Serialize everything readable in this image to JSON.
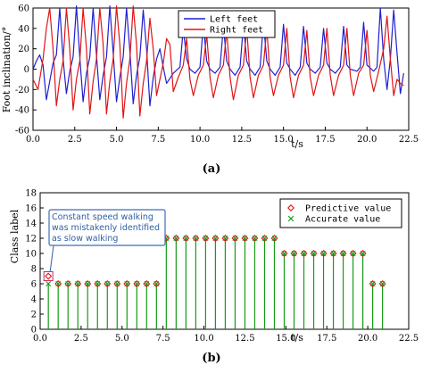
{
  "chart_data": [
    {
      "type": "line",
      "title": "",
      "xlabel": "t/s",
      "ylabel": "Foot inclination/°",
      "xlim": [
        0,
        22.5
      ],
      "ylim": [
        -60,
        60
      ],
      "x_ticks": [
        "0.0",
        "2.5",
        "5.0",
        "7.5",
        "10.0",
        "12.5",
        "15.0",
        "17.5",
        "20.0",
        "22.5"
      ],
      "y_ticks": [
        "-60",
        "-40",
        "-20",
        "0",
        "20",
        "40",
        "60"
      ],
      "grid": false,
      "legend": {
        "placement": "top-right"
      },
      "caption": "(a)",
      "series": [
        {
          "name": "Left feet",
          "color": "#1f1fd1",
          "points": [
            [
              0.0,
              0
            ],
            [
              0.2,
              8
            ],
            [
              0.4,
              14
            ],
            [
              0.6,
              4
            ],
            [
              0.8,
              -30
            ],
            [
              1.0,
              -12
            ],
            [
              1.2,
              6
            ],
            [
              1.4,
              14
            ],
            [
              1.6,
              60
            ],
            [
              1.8,
              10
            ],
            [
              2.0,
              -24
            ],
            [
              2.2,
              -2
            ],
            [
              2.4,
              12
            ],
            [
              2.6,
              62
            ],
            [
              2.8,
              12
            ],
            [
              3.0,
              -32
            ],
            [
              3.2,
              -4
            ],
            [
              3.4,
              12
            ],
            [
              3.6,
              60
            ],
            [
              3.8,
              14
            ],
            [
              4.0,
              -30
            ],
            [
              4.2,
              -6
            ],
            [
              4.4,
              12
            ],
            [
              4.6,
              62
            ],
            [
              4.8,
              16
            ],
            [
              5.0,
              -32
            ],
            [
              5.2,
              -8
            ],
            [
              5.4,
              12
            ],
            [
              5.6,
              60
            ],
            [
              5.8,
              18
            ],
            [
              6.0,
              -34
            ],
            [
              6.2,
              -6
            ],
            [
              6.4,
              12
            ],
            [
              6.6,
              58
            ],
            [
              6.8,
              20
            ],
            [
              7.0,
              -36
            ],
            [
              7.2,
              -8
            ],
            [
              7.4,
              10
            ],
            [
              7.6,
              20
            ],
            [
              7.8,
              2
            ],
            [
              8.0,
              -14
            ],
            [
              8.4,
              -4
            ],
            [
              8.8,
              2
            ],
            [
              9.0,
              40
            ],
            [
              9.2,
              10
            ],
            [
              9.4,
              0
            ],
            [
              9.7,
              -4
            ],
            [
              10.0,
              2
            ],
            [
              10.2,
              44
            ],
            [
              10.4,
              8
            ],
            [
              10.6,
              0
            ],
            [
              10.9,
              -4
            ],
            [
              11.2,
              2
            ],
            [
              11.4,
              42
            ],
            [
              11.6,
              8
            ],
            [
              11.8,
              0
            ],
            [
              12.1,
              -6
            ],
            [
              12.4,
              2
            ],
            [
              12.6,
              44
            ],
            [
              12.8,
              8
            ],
            [
              13.0,
              0
            ],
            [
              13.3,
              -6
            ],
            [
              13.6,
              2
            ],
            [
              13.8,
              46
            ],
            [
              14.0,
              8
            ],
            [
              14.2,
              0
            ],
            [
              14.5,
              -6
            ],
            [
              14.8,
              2
            ],
            [
              15.0,
              44
            ],
            [
              15.2,
              6
            ],
            [
              15.4,
              0
            ],
            [
              15.7,
              -6
            ],
            [
              16.0,
              2
            ],
            [
              16.2,
              42
            ],
            [
              16.4,
              6
            ],
            [
              16.6,
              0
            ],
            [
              16.9,
              -4
            ],
            [
              17.2,
              2
            ],
            [
              17.4,
              40
            ],
            [
              17.6,
              6
            ],
            [
              17.8,
              0
            ],
            [
              18.1,
              -4
            ],
            [
              18.4,
              2
            ],
            [
              18.6,
              42
            ],
            [
              18.8,
              4
            ],
            [
              19.0,
              0
            ],
            [
              19.4,
              -2
            ],
            [
              19.6,
              2
            ],
            [
              19.8,
              46
            ],
            [
              20.0,
              4
            ],
            [
              20.4,
              -2
            ],
            [
              20.6,
              2
            ],
            [
              20.8,
              60
            ],
            [
              21.0,
              10
            ],
            [
              21.2,
              -20
            ],
            [
              21.4,
              10
            ],
            [
              21.6,
              58
            ],
            [
              21.8,
              16
            ],
            [
              22.0,
              -24
            ],
            [
              22.2,
              -4
            ]
          ]
        },
        {
          "name": "Right feet",
          "color": "#e01515",
          "points": [
            [
              0.0,
              -10
            ],
            [
              0.3,
              -20
            ],
            [
              0.6,
              10
            ],
            [
              0.8,
              40
            ],
            [
              1.0,
              60
            ],
            [
              1.2,
              20
            ],
            [
              1.4,
              -36
            ],
            [
              1.6,
              -10
            ],
            [
              1.8,
              8
            ],
            [
              2.0,
              60
            ],
            [
              2.2,
              20
            ],
            [
              2.4,
              -40
            ],
            [
              2.6,
              -10
            ],
            [
              2.8,
              8
            ],
            [
              3.0,
              60
            ],
            [
              3.2,
              20
            ],
            [
              3.4,
              -44
            ],
            [
              3.6,
              -12
            ],
            [
              3.8,
              10
            ],
            [
              4.0,
              60
            ],
            [
              4.2,
              24
            ],
            [
              4.4,
              -44
            ],
            [
              4.6,
              -12
            ],
            [
              4.8,
              10
            ],
            [
              5.0,
              62
            ],
            [
              5.2,
              24
            ],
            [
              5.4,
              -48
            ],
            [
              5.6,
              -14
            ],
            [
              5.8,
              10
            ],
            [
              6.0,
              62
            ],
            [
              6.2,
              24
            ],
            [
              6.4,
              -46
            ],
            [
              6.6,
              -14
            ],
            [
              6.8,
              8
            ],
            [
              7.0,
              50
            ],
            [
              7.2,
              20
            ],
            [
              7.4,
              -26
            ],
            [
              7.6,
              -10
            ],
            [
              7.8,
              6
            ],
            [
              8.0,
              30
            ],
            [
              8.2,
              24
            ],
            [
              8.4,
              -22
            ],
            [
              8.7,
              -8
            ],
            [
              9.0,
              4
            ],
            [
              9.2,
              30
            ],
            [
              9.4,
              -10
            ],
            [
              9.6,
              -26
            ],
            [
              9.9,
              -6
            ],
            [
              10.2,
              4
            ],
            [
              10.4,
              34
            ],
            [
              10.6,
              -8
            ],
            [
              10.8,
              -28
            ],
            [
              11.1,
              -6
            ],
            [
              11.4,
              4
            ],
            [
              11.6,
              38
            ],
            [
              11.8,
              -8
            ],
            [
              12.0,
              -30
            ],
            [
              12.3,
              -6
            ],
            [
              12.6,
              4
            ],
            [
              12.8,
              40
            ],
            [
              13.0,
              -8
            ],
            [
              13.2,
              -28
            ],
            [
              13.5,
              -6
            ],
            [
              13.8,
              4
            ],
            [
              14.0,
              40
            ],
            [
              14.2,
              -8
            ],
            [
              14.4,
              -26
            ],
            [
              14.7,
              -6
            ],
            [
              15.0,
              4
            ],
            [
              15.2,
              40
            ],
            [
              15.4,
              -8
            ],
            [
              15.6,
              -28
            ],
            [
              15.9,
              -6
            ],
            [
              16.2,
              4
            ],
            [
              16.4,
              38
            ],
            [
              16.6,
              -8
            ],
            [
              16.8,
              -26
            ],
            [
              17.1,
              -6
            ],
            [
              17.4,
              4
            ],
            [
              17.6,
              40
            ],
            [
              17.8,
              -6
            ],
            [
              18.0,
              -26
            ],
            [
              18.3,
              -6
            ],
            [
              18.6,
              4
            ],
            [
              18.8,
              40
            ],
            [
              19.0,
              -6
            ],
            [
              19.2,
              -26
            ],
            [
              19.5,
              -4
            ],
            [
              19.8,
              4
            ],
            [
              20.0,
              38
            ],
            [
              20.2,
              -6
            ],
            [
              20.4,
              -22
            ],
            [
              20.7,
              -2
            ],
            [
              21.0,
              20
            ],
            [
              21.2,
              52
            ],
            [
              21.4,
              10
            ],
            [
              21.6,
              -26
            ],
            [
              21.8,
              -10
            ],
            [
              22.0,
              -14
            ],
            [
              22.2,
              -16
            ]
          ]
        }
      ]
    },
    {
      "type": "stem",
      "title": "",
      "xlabel": "t/s",
      "ylabel": "Class label",
      "xlim": [
        0,
        22.5
      ],
      "ylim": [
        0,
        18
      ],
      "x_ticks": [
        "0.0",
        "2.5",
        "5.0",
        "7.5",
        "10.0",
        "12.5",
        "15.0",
        "17.5",
        "20.0",
        "22.5"
      ],
      "y_ticks": [
        "0",
        "2",
        "4",
        "6",
        "8",
        "10",
        "12",
        "14",
        "16",
        "18"
      ],
      "grid": false,
      "legend": {
        "placement": "top-right"
      },
      "caption": "(b)",
      "x": [
        0.5,
        1.1,
        1.7,
        2.3,
        2.9,
        3.5,
        4.1,
        4.7,
        5.3,
        5.9,
        6.5,
        7.1,
        7.7,
        8.3,
        8.9,
        9.5,
        10.1,
        10.7,
        11.3,
        11.9,
        12.5,
        13.1,
        13.7,
        14.3,
        14.9,
        15.5,
        16.1,
        16.7,
        17.3,
        17.9,
        18.5,
        19.1,
        19.7,
        20.3,
        20.9
      ],
      "series": [
        {
          "name": "Predictive value",
          "color": "#e01515",
          "marker": "diamond",
          "values": [
            7,
            6,
            6,
            6,
            6,
            6,
            6,
            6,
            6,
            6,
            6,
            6,
            12,
            12,
            12,
            12,
            12,
            12,
            12,
            12,
            12,
            12,
            12,
            12,
            10,
            10,
            10,
            10,
            10,
            10,
            10,
            10,
            10,
            6,
            6
          ]
        },
        {
          "name": "Accurate value",
          "color": "#169b16",
          "marker": "x",
          "values": [
            6,
            6,
            6,
            6,
            6,
            6,
            6,
            6,
            6,
            6,
            6,
            6,
            12,
            12,
            12,
            12,
            12,
            12,
            12,
            12,
            12,
            12,
            12,
            12,
            10,
            10,
            10,
            10,
            10,
            10,
            10,
            10,
            10,
            6,
            6
          ]
        }
      ],
      "annotation": {
        "lines": [
          "Constant speed walking",
          "was mistakenly identified",
          "as slow walking"
        ],
        "target_x": 0.5,
        "target_y": 7
      }
    }
  ]
}
